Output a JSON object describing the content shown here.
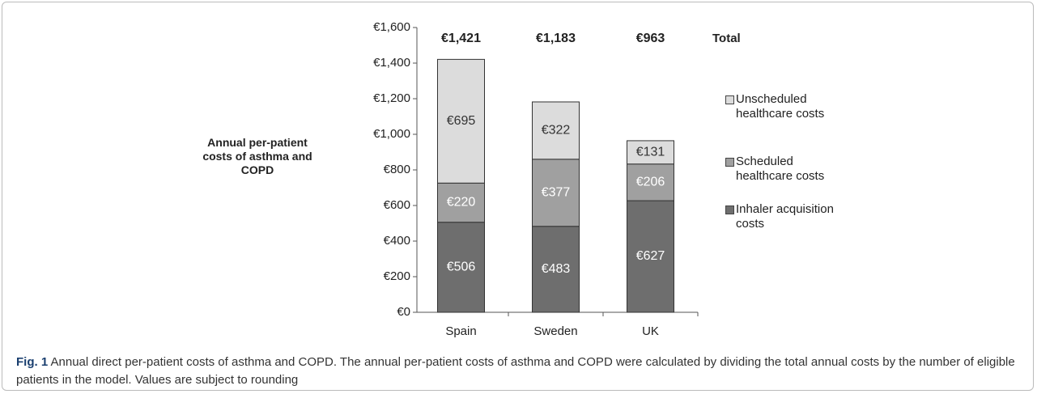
{
  "chart_data": {
    "type": "stacked_bar",
    "y_label": "Annual per-patient costs of asthma and COPD",
    "categories": [
      "Spain",
      "Sweden",
      "UK"
    ],
    "series": [
      {
        "name": "Inhaler acquisition costs",
        "color": "#6e6e6e",
        "values": [
          506,
          483,
          627
        ],
        "value_labels": [
          "€506",
          "€483",
          "€627"
        ]
      },
      {
        "name": "Scheduled healthcare costs",
        "color": "#a0a0a0",
        "values": [
          220,
          377,
          206
        ],
        "value_labels": [
          "€220",
          "€377",
          "€206"
        ]
      },
      {
        "name": "Unscheduled healthcare costs",
        "color": "#dcdcdc",
        "values": [
          695,
          322,
          131
        ],
        "value_labels": [
          "€695",
          "€322",
          "€131"
        ]
      }
    ],
    "total_title": "Total",
    "totals": [
      1421,
      1183,
      963
    ],
    "total_labels": [
      "€1,421",
      "€1,183",
      "€963"
    ],
    "ylim": [
      0,
      1600
    ],
    "yticks": [
      {
        "value": 0,
        "label": "€0"
      },
      {
        "value": 200,
        "label": "€200"
      },
      {
        "value": 400,
        "label": "€400"
      },
      {
        "value": 600,
        "label": "€600"
      },
      {
        "value": 800,
        "label": "€800"
      },
      {
        "value": 1000,
        "label": "€1,000"
      },
      {
        "value": 1200,
        "label": "€1,200"
      },
      {
        "value": 1400,
        "label": "€1,400"
      },
      {
        "value": 1600,
        "label": "€1,600"
      }
    ],
    "legend": "right",
    "caption": {
      "label": "Fig. 1",
      "text": "Annual direct per-patient costs of asthma and COPD. The annual per-patient costs of asthma and COPD were calculated by dividing the total annual costs by the number of eligible patients in the model. Values are subject to rounding"
    }
  }
}
